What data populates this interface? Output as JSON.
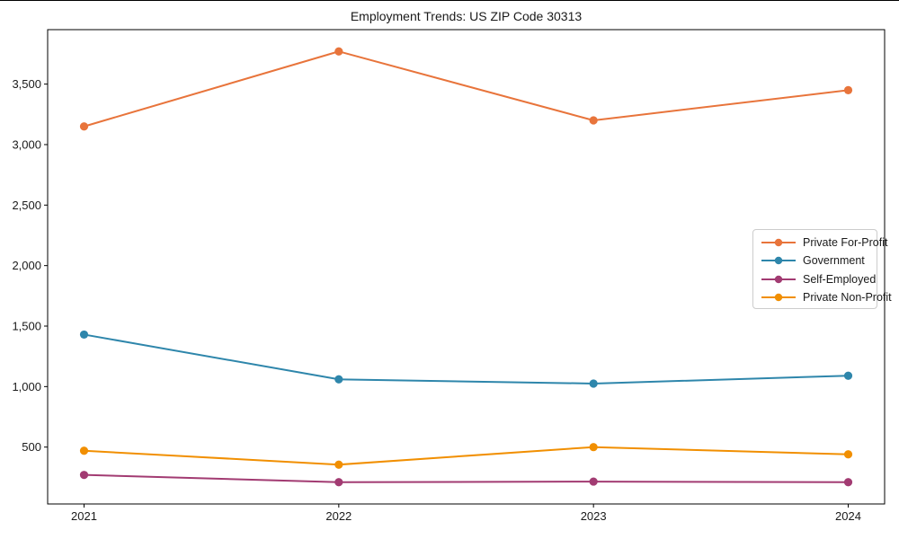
{
  "page": {
    "background": "#ffffff",
    "top_edge_color": "#000000"
  },
  "chart_data": {
    "type": "line",
    "title": "Employment Trends: US ZIP Code 30313",
    "xlabel": "",
    "ylabel": "",
    "categories": [
      "2021",
      "2022",
      "2023",
      "2024"
    ],
    "xtick_labels": [
      "2021",
      "2022",
      "2023",
      "2024"
    ],
    "ytick_values": [
      500,
      1000,
      1500,
      2000,
      2500,
      3000,
      3500
    ],
    "ytick_labels": [
      "500",
      "1,000",
      "1,500",
      "2,000",
      "2,500",
      "3,000",
      "3,500"
    ],
    "ylim": [
      30,
      3950
    ],
    "grid": false,
    "marker": "circle",
    "axis_color": "#000000",
    "legend_position": "center-right",
    "series": [
      {
        "name": "Private For-Profit",
        "color": "#E8743B",
        "values": [
          3150,
          3770,
          3200,
          3450
        ]
      },
      {
        "name": "Government",
        "color": "#2E86AB",
        "values": [
          1430,
          1060,
          1025,
          1090
        ]
      },
      {
        "name": "Self-Employed",
        "color": "#A23B72",
        "values": [
          270,
          210,
          215,
          210
        ]
      },
      {
        "name": "Private Non-Profit",
        "color": "#F18F01",
        "values": [
          470,
          355,
          500,
          440
        ]
      }
    ]
  }
}
